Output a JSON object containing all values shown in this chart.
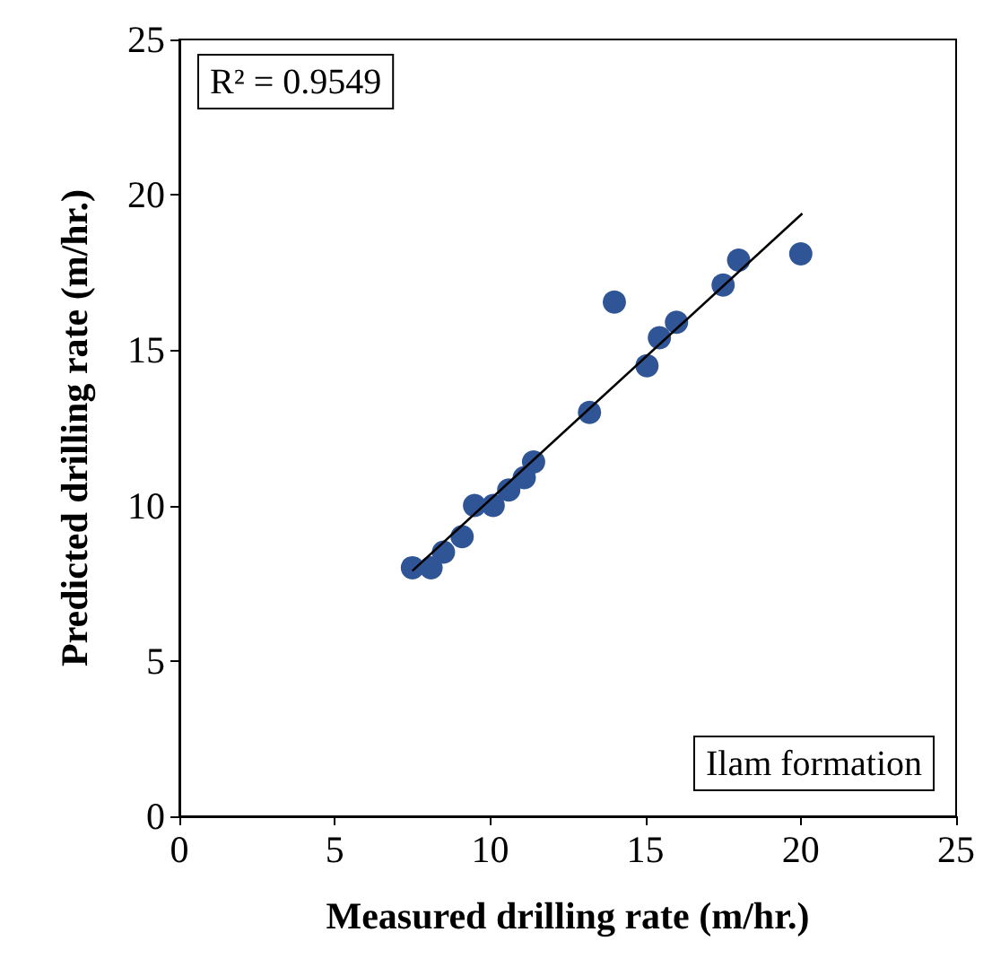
{
  "chart_data": {
    "type": "scatter",
    "xlabel": "Measured drilling rate (m/hr.)",
    "ylabel": "Predicted drilling rate (m/hr.)",
    "xlim": [
      0,
      25
    ],
    "xticks": [
      0,
      5,
      10,
      15,
      20,
      25
    ],
    "ylim": [
      0,
      25
    ],
    "yticks": [
      0,
      5,
      10,
      15,
      20,
      25
    ],
    "grid": false,
    "marker": "circle",
    "annotations": [
      "R² = 0.9549",
      "Ilam formation"
    ],
    "series": [
      {
        "color": "#2f5597",
        "x": [
          7.5,
          8.1,
          8.5,
          9.1,
          9.5,
          10.1,
          10.6,
          11.1,
          11.4,
          13.2,
          14.0,
          15.05,
          15.45,
          16.0,
          17.5,
          18.0,
          20.0
        ],
        "values": [
          8.0,
          8.0,
          8.5,
          9.0,
          10.0,
          10.0,
          10.5,
          10.9,
          11.4,
          13.0,
          16.55,
          14.5,
          15.4,
          15.9,
          17.1,
          17.9,
          18.1
        ]
      },
      {
        "type": "line",
        "color": "#000000",
        "marker": "none",
        "line_style": "solid",
        "x": [
          7.5,
          20.05
        ],
        "values": [
          7.9,
          19.4
        ]
      }
    ]
  }
}
